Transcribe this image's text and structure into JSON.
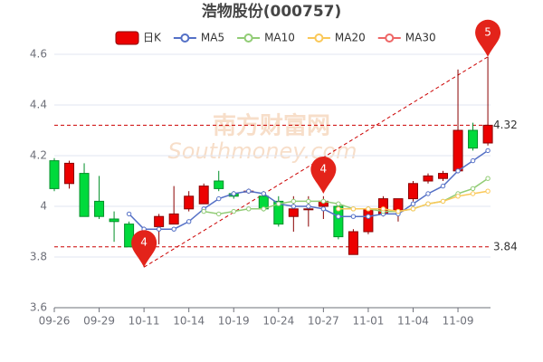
{
  "chart_data": {
    "type": "candlestick",
    "title": "浩物股份(000757)",
    "watermark": [
      "南方财富网",
      "Southmoney.com"
    ],
    "categories": [
      "09-26",
      null,
      null,
      "09-29",
      null,
      null,
      "10-11",
      null,
      null,
      "10-14",
      null,
      null,
      "10-19",
      null,
      null,
      "10-24",
      null,
      null,
      "10-27",
      null,
      null,
      "11-01",
      null,
      null,
      "11-04",
      null,
      null,
      "11-09",
      null,
      null
    ],
    "candles": {
      "name": "日K",
      "up_color": "#ec0000",
      "up_border": "#8a0000",
      "down_color": "#00da3c",
      "down_border": "#008f28",
      "open": [
        4.18,
        4.09,
        4.13,
        4.02,
        3.95,
        3.93,
        3.85,
        3.92,
        3.93,
        3.99,
        4.01,
        4.1,
        4.05,
        4.06,
        4.04,
        4.02,
        3.96,
        3.99,
        4.0,
        4.0,
        3.81,
        3.9,
        3.97,
        3.98,
        4.03,
        4.1,
        4.11,
        4.14,
        4.3,
        4.25
      ],
      "close": [
        4.07,
        4.17,
        3.96,
        3.96,
        3.94,
        3.84,
        3.9,
        3.96,
        3.97,
        4.04,
        4.08,
        4.07,
        4.04,
        4.06,
        3.99,
        3.93,
        3.99,
        3.99,
        4.02,
        3.88,
        3.9,
        3.99,
        4.03,
        4.03,
        4.09,
        4.12,
        4.13,
        4.3,
        4.23,
        4.32
      ],
      "high": [
        4.19,
        4.18,
        4.17,
        4.12,
        3.98,
        3.94,
        3.92,
        3.97,
        4.08,
        4.06,
        4.09,
        4.14,
        4.06,
        4.07,
        4.06,
        4.04,
        4.04,
        4.04,
        4.04,
        4.01,
        3.91,
        4.0,
        4.04,
        4.03,
        4.1,
        4.13,
        4.14,
        4.54,
        4.33,
        4.59
      ],
      "low": [
        4.06,
        4.07,
        3.96,
        3.95,
        3.86,
        3.84,
        3.76,
        3.85,
        3.93,
        3.98,
        4.01,
        4.06,
        4.03,
        4.05,
        3.98,
        3.92,
        3.9,
        3.92,
        3.95,
        3.87,
        3.81,
        3.89,
        3.96,
        3.94,
        4.02,
        4.09,
        4.1,
        4.13,
        4.22,
        4.24
      ]
    },
    "series": [
      {
        "name": "MA5",
        "color": "#5470c6",
        "values": [
          null,
          null,
          null,
          null,
          null,
          3.97,
          3.91,
          3.91,
          3.91,
          3.94,
          3.99,
          4.03,
          4.05,
          4.06,
          4.05,
          4.01,
          4.0,
          4.0,
          3.99,
          3.96,
          3.96,
          3.96,
          3.97,
          3.97,
          4.01,
          4.05,
          4.08,
          4.14,
          4.18,
          4.22
        ]
      },
      {
        "name": "MA10",
        "color": "#91cc75",
        "values": [
          null,
          null,
          null,
          null,
          null,
          null,
          null,
          null,
          null,
          null,
          3.98,
          3.97,
          3.98,
          3.99,
          3.99,
          4.01,
          4.02,
          4.02,
          4.02,
          4.01,
          3.99,
          3.99,
          3.98,
          3.98,
          3.99,
          4.01,
          4.02,
          4.05,
          4.07,
          4.11
        ]
      },
      {
        "name": "MA20",
        "color": "#fac858",
        "values": [
          null,
          null,
          null,
          null,
          null,
          null,
          null,
          null,
          null,
          null,
          null,
          null,
          null,
          null,
          null,
          null,
          null,
          null,
          null,
          3.99,
          3.99,
          3.99,
          3.99,
          3.98,
          3.99,
          4.01,
          4.02,
          4.04,
          4.05,
          4.06
        ]
      },
      {
        "name": "MA30",
        "color": "#ee6666",
        "values": [
          null,
          null,
          null,
          null,
          null,
          null,
          null,
          null,
          null,
          null,
          null,
          null,
          null,
          null,
          null,
          null,
          null,
          null,
          null,
          null,
          null,
          null,
          null,
          null,
          null,
          null,
          null,
          null,
          null,
          null
        ]
      }
    ],
    "mark_lines": [
      4.32,
      3.84
    ],
    "mark_points": [
      {
        "index": 29,
        "value": 4.59,
        "label": "5"
      },
      {
        "index": 6,
        "value": 3.76,
        "label": "4"
      },
      {
        "index": 18,
        "value": 4.05,
        "label": "4"
      }
    ],
    "ylim": [
      3.6,
      4.6
    ],
    "yticks": [
      3.6,
      3.8,
      4,
      4.2,
      4.4,
      4.6
    ],
    "grid": true
  }
}
